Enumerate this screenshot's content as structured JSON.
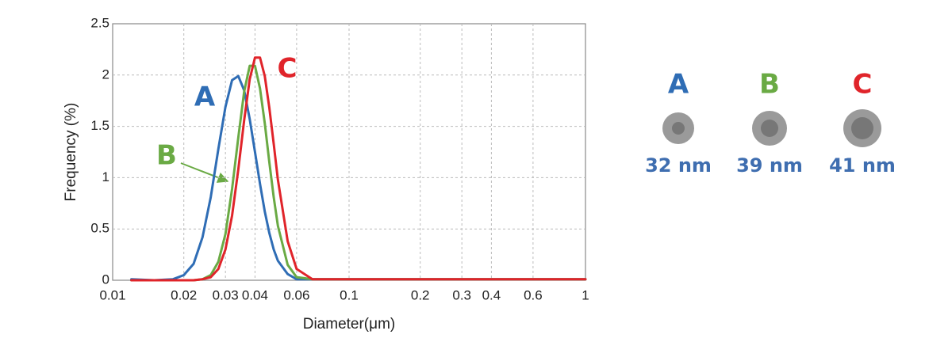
{
  "chart_data": {
    "type": "line",
    "xlabel": "Diameter(μm)",
    "ylabel": "Frequency (%)",
    "xscale": "log",
    "grid": true,
    "xlim": [
      0.01,
      1
    ],
    "ylim": [
      0,
      2.5
    ],
    "xticks": [
      0.01,
      0.02,
      0.03,
      0.04,
      0.06,
      0.1,
      0.2,
      0.3,
      0.4,
      0.6,
      1
    ],
    "yticks": [
      0,
      0.5,
      1,
      1.5,
      2,
      2.5
    ],
    "x": [
      0.012,
      0.015,
      0.018,
      0.02,
      0.022,
      0.024,
      0.026,
      0.028,
      0.03,
      0.032,
      0.034,
      0.036,
      0.038,
      0.04,
      0.042,
      0.044,
      0.046,
      0.048,
      0.05,
      0.055,
      0.06,
      0.07,
      0.08,
      0.1,
      0.2,
      0.5,
      1
    ],
    "series": [
      {
        "name": "A",
        "color": "#2f6db5",
        "values": [
          0.01,
          0,
          0.01,
          0.05,
          0.16,
          0.42,
          0.81,
          1.28,
          1.69,
          1.95,
          1.99,
          1.85,
          1.57,
          1.25,
          0.94,
          0.67,
          0.46,
          0.3,
          0.19,
          0.06,
          0.01,
          0.01,
          0.01,
          0.01,
          0.01,
          0.01,
          0.01
        ]
      },
      {
        "name": "B",
        "color": "#6aaa44",
        "values": [
          0,
          0,
          0,
          0,
          0,
          0.01,
          0.05,
          0.18,
          0.45,
          0.89,
          1.39,
          1.84,
          2.09,
          2.09,
          1.87,
          1.53,
          1.15,
          0.81,
          0.53,
          0.15,
          0.03,
          0.01,
          0.01,
          0.01,
          0.01,
          0.01,
          0.01
        ]
      },
      {
        "name": "C",
        "color": "#e0242a",
        "values": [
          0,
          0,
          0,
          0,
          0,
          0.01,
          0.03,
          0.11,
          0.3,
          0.63,
          1.08,
          1.56,
          1.96,
          2.17,
          2.17,
          1.99,
          1.68,
          1.33,
          0.98,
          0.38,
          0.11,
          0.01,
          0.01,
          0.01,
          0.01,
          0.01,
          0.01
        ]
      }
    ]
  },
  "particles": [
    {
      "label": "A",
      "size": "32 nm"
    },
    {
      "label": "B",
      "size": "39 nm"
    },
    {
      "label": "C",
      "size": "41 nm"
    }
  ]
}
